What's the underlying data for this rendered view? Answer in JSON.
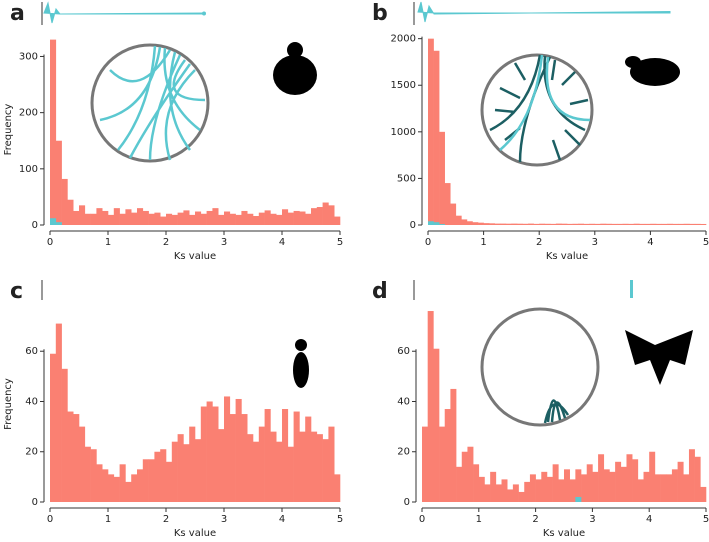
{
  "chart_data": [
    {
      "type": "histogram",
      "panel": "a",
      "xlabel": "Ks value",
      "ylabel": "Frequency",
      "bins": [
        0,
        0.1,
        0.2,
        0.3,
        0.4,
        0.5,
        0.6,
        0.7,
        0.8,
        0.9,
        1,
        1.1,
        1.2,
        1.3,
        1.4,
        1.5,
        1.6,
        1.7,
        1.8,
        1.9,
        2,
        2.1,
        2.2,
        2.3,
        2.4,
        2.5,
        2.6,
        2.7,
        2.8,
        2.9,
        3,
        3.1,
        3.2,
        3.3,
        3.4,
        3.5,
        3.6,
        3.7,
        3.8,
        3.9,
        4,
        4.1,
        4.2,
        4.3,
        4.4,
        4.5,
        4.6,
        4.7,
        4.8,
        4.9,
        5
      ],
      "series": [
        {
          "color": "#fa8072",
          "counts": [
            330,
            150,
            82,
            45,
            25,
            35,
            20,
            20,
            30,
            25,
            18,
            30,
            20,
            28,
            22,
            30,
            25,
            20,
            22,
            15,
            20,
            18,
            22,
            26,
            18,
            24,
            20,
            25,
            30,
            18,
            24,
            20,
            18,
            25,
            20,
            16,
            22,
            26,
            20,
            18,
            28,
            22,
            25,
            24,
            20,
            30,
            32,
            40,
            35,
            15
          ]
        },
        {
          "color": "#5bc8d0",
          "counts": [
            12,
            5,
            0,
            0,
            0,
            0,
            0,
            0,
            0,
            0,
            0,
            0,
            0,
            0,
            0,
            0,
            0,
            0,
            0,
            0,
            0,
            0,
            0,
            0,
            0,
            0,
            0,
            0,
            0,
            0,
            0,
            0,
            0,
            0,
            0,
            0,
            0,
            0,
            0,
            0,
            0,
            0,
            0,
            0,
            0,
            0,
            0,
            0,
            0,
            0
          ]
        }
      ],
      "xlim": [
        0,
        5
      ],
      "xticks": [
        0,
        1,
        2,
        3,
        4,
        5
      ],
      "ylim": [
        0,
        340
      ],
      "yticks": [
        0,
        100,
        200,
        300
      ]
    },
    {
      "type": "histogram",
      "panel": "b",
      "xlabel": "Ks value",
      "bins": [
        0,
        0.1,
        0.2,
        0.3,
        0.4,
        0.5,
        0.6,
        0.7,
        0.8,
        0.9,
        1,
        1.1,
        1.2,
        1.3,
        1.4,
        1.5,
        1.6,
        1.7,
        1.8,
        1.9,
        2,
        2.1,
        2.2,
        2.3,
        2.4,
        2.5,
        2.6,
        2.7,
        2.8,
        2.9,
        3,
        3.1,
        3.2,
        3.3,
        3.4,
        3.5,
        3.6,
        3.7,
        3.8,
        3.9,
        4,
        4.1,
        4.2,
        4.3,
        4.4,
        4.5,
        4.6,
        4.7,
        4.8,
        4.9,
        5
      ],
      "series": [
        {
          "color": "#fa8072",
          "counts": [
            2000,
            1870,
            1000,
            450,
            230,
            100,
            60,
            40,
            30,
            25,
            20,
            18,
            15,
            15,
            14,
            15,
            14,
            13,
            15,
            12,
            14,
            13,
            12,
            15,
            14,
            12,
            13,
            14,
            12,
            13,
            12,
            14,
            13,
            12,
            12,
            13,
            12,
            14,
            12,
            12,
            13,
            12,
            12,
            13,
            12,
            12,
            13,
            12,
            12,
            11
          ]
        },
        {
          "color": "#5bc8d0",
          "counts": [
            40,
            30,
            10,
            0,
            0,
            0,
            0,
            0,
            0,
            0,
            0,
            0,
            0,
            0,
            0,
            0,
            0,
            0,
            0,
            0,
            0,
            0,
            0,
            0,
            0,
            0,
            0,
            0,
            0,
            0,
            0,
            0,
            0,
            0,
            0,
            0,
            0,
            0,
            0,
            0,
            0,
            0,
            0,
            0,
            0,
            0,
            0,
            0,
            0,
            0
          ]
        }
      ],
      "xlim": [
        0,
        5
      ],
      "xticks": [
        0,
        1,
        2,
        3,
        4,
        5
      ],
      "ylim": [
        0,
        2050
      ],
      "yticks": [
        0,
        500,
        1000,
        1500,
        2000
      ]
    },
    {
      "type": "histogram",
      "panel": "c",
      "xlabel": "Ks value",
      "ylabel": "Frequency",
      "bins": [
        0,
        0.1,
        0.2,
        0.3,
        0.4,
        0.5,
        0.6,
        0.7,
        0.8,
        0.9,
        1,
        1.1,
        1.2,
        1.3,
        1.4,
        1.5,
        1.6,
        1.7,
        1.8,
        1.9,
        2,
        2.1,
        2.2,
        2.3,
        2.4,
        2.5,
        2.6,
        2.7,
        2.8,
        2.9,
        3,
        3.1,
        3.2,
        3.3,
        3.4,
        3.5,
        3.6,
        3.7,
        3.8,
        3.9,
        4,
        4.1,
        4.2,
        4.3,
        4.4,
        4.5,
        4.6,
        4.7,
        4.8,
        4.9,
        5
      ],
      "series": [
        {
          "color": "#fa8072",
          "counts": [
            59,
            71,
            53,
            36,
            35,
            30,
            22,
            21,
            15,
            13,
            11,
            10,
            15,
            8,
            11,
            13,
            17,
            17,
            20,
            21,
            16,
            24,
            27,
            23,
            30,
            25,
            38,
            40,
            38,
            29,
            42,
            35,
            41,
            35,
            27,
            24,
            30,
            37,
            28,
            24,
            37,
            22,
            36,
            28,
            34,
            28,
            27,
            25,
            30,
            11
          ]
        }
      ],
      "xlim": [
        0,
        5
      ],
      "xticks": [
        0,
        1,
        2,
        3,
        4,
        5
      ],
      "ylim": [
        0,
        78
      ],
      "yticks": [
        0,
        20,
        40,
        60
      ]
    },
    {
      "type": "histogram",
      "panel": "d",
      "xlabel": "Ks value",
      "bins": [
        0,
        0.1,
        0.2,
        0.3,
        0.4,
        0.5,
        0.6,
        0.7,
        0.8,
        0.9,
        1,
        1.1,
        1.2,
        1.3,
        1.4,
        1.5,
        1.6,
        1.7,
        1.8,
        1.9,
        2,
        2.1,
        2.2,
        2.3,
        2.4,
        2.5,
        2.6,
        2.7,
        2.8,
        2.9,
        3,
        3.1,
        3.2,
        3.3,
        3.4,
        3.5,
        3.6,
        3.7,
        3.8,
        3.9,
        4,
        4.1,
        4.2,
        4.3,
        4.4,
        4.5,
        4.6,
        4.7,
        4.8,
        4.9,
        5
      ],
      "series": [
        {
          "color": "#fa8072",
          "counts": [
            30,
            76,
            61,
            30,
            37,
            45,
            14,
            20,
            22,
            15,
            10,
            7,
            12,
            7,
            9,
            5,
            7,
            4,
            8,
            11,
            9,
            12,
            10,
            15,
            9,
            13,
            9,
            13,
            11,
            15,
            12,
            19,
            13,
            12,
            16,
            14,
            19,
            17,
            9,
            12,
            20,
            11,
            11,
            11,
            13,
            16,
            11,
            21,
            18,
            6
          ]
        },
        {
          "color": "#5bc8d0",
          "counts": [
            0,
            0,
            0,
            0,
            0,
            0,
            0,
            0,
            0,
            0,
            0,
            0,
            0,
            0,
            0,
            0,
            0,
            0,
            0,
            0,
            0,
            0,
            0,
            0,
            0,
            0,
            0,
            2,
            0,
            0,
            0,
            0,
            0,
            0,
            0,
            0,
            0,
            0,
            0,
            0,
            0,
            0,
            0,
            0,
            0,
            0,
            0,
            0,
            0,
            0
          ]
        }
      ],
      "xlim": [
        0,
        5
      ],
      "xticks": [
        0,
        1,
        2,
        3,
        4,
        5
      ],
      "ylim": [
        0,
        78
      ],
      "yticks": [
        0,
        20,
        40,
        60
      ]
    }
  ]
}
